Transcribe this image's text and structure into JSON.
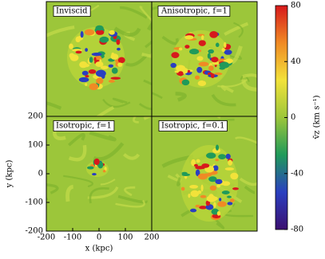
{
  "chart_data": {
    "type": "heatmap",
    "panels": [
      {
        "title": "Inviscid"
      },
      {
        "title": "Anisotropic, f=1"
      },
      {
        "title": "Isotropic, f=1"
      },
      {
        "title": "Isotropic, f=0.1"
      }
    ],
    "xlabel": "x (kpc)",
    "ylabel": "y (kpc)",
    "xlim": [
      -200,
      200
    ],
    "xticks": [
      -200,
      -100,
      0,
      100,
      200
    ],
    "ylim": [
      -200,
      200
    ],
    "yticks": [
      -200,
      -100,
      0,
      100,
      200
    ],
    "colorbar": {
      "label": "v̄z (km s⁻¹)",
      "lim": [
        -80,
        80
      ],
      "ticks": [
        -80,
        -40,
        0,
        40,
        80
      ],
      "colors": [
        "#3b0f70",
        "#2a3fc0",
        "#1f9a5a",
        "#9cc63a",
        "#f2e23a",
        "#f08a24",
        "#d7191c"
      ]
    }
  }
}
